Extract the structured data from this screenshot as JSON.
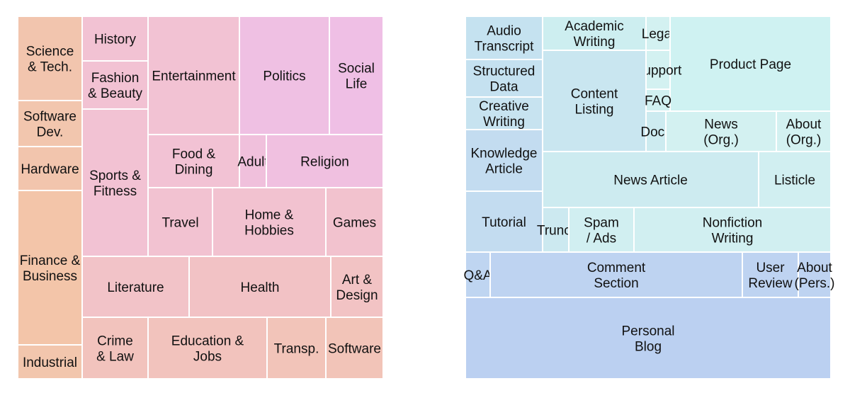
{
  "treemaps": [
    {
      "cells": [
        {
          "label": "Science\n& Tech.",
          "color": "#f2c5ae"
        },
        {
          "label": "Software\nDev.",
          "color": "#f2c6ae"
        },
        {
          "label": "Hardware",
          "color": "#f2c5ad"
        },
        {
          "label": "Finance &\nBusiness",
          "color": "#f3c5a9"
        },
        {
          "label": "Industrial",
          "color": "#f2c6ad"
        },
        {
          "label": "History",
          "color": "#f2c2d3"
        },
        {
          "label": "Fashion\n& Beauty",
          "color": "#f2c2d3"
        },
        {
          "label": "Sports &\nFitness",
          "color": "#f2c2d3"
        },
        {
          "label": "Entertainment",
          "color": "#f2c2d3"
        },
        {
          "label": "Politics",
          "color": "#efc0e3"
        },
        {
          "label": "Social\nLife",
          "color": "#efbfe5"
        },
        {
          "label": "Food &\nDining",
          "color": "#f2c2d4"
        },
        {
          "label": "Adult",
          "color": "#f0c0dc"
        },
        {
          "label": "Religion",
          "color": "#f0c0e0"
        },
        {
          "label": "Travel",
          "color": "#f2c2d1"
        },
        {
          "label": "Home &\nHobbies",
          "color": "#f2c2d0"
        },
        {
          "label": "Games",
          "color": "#f2c2ce"
        },
        {
          "label": "Literature",
          "color": "#f2c3c8"
        },
        {
          "label": "Health",
          "color": "#f2c2c5"
        },
        {
          "label": "Art &\nDesign",
          "color": "#f2c3c4"
        },
        {
          "label": "Crime\n& Law",
          "color": "#f2c3bd"
        },
        {
          "label": "Education &\nJobs",
          "color": "#f2c3bd"
        },
        {
          "label": "Transp.",
          "color": "#f2c4b9"
        },
        {
          "label": "Software",
          "color": "#f2c4b8"
        }
      ]
    },
    {
      "cells": [
        {
          "label": "Audio\nTranscript",
          "color": "#c5e2f0"
        },
        {
          "label": "Academic\nWriting",
          "color": "#cdeef0"
        },
        {
          "label": "Legal",
          "color": "#d3f1f1"
        },
        {
          "label": "Product Page",
          "color": "#cff2f2"
        },
        {
          "label": "Structured\nData",
          "color": "#c5e1f0"
        },
        {
          "label": "Support",
          "color": "#d3f1f1"
        },
        {
          "label": "Creative\nWriting",
          "color": "#c7e3f0"
        },
        {
          "label": "Content\nListing",
          "color": "#c9e6f0"
        },
        {
          "label": "FAQ",
          "color": "#d1f0f1"
        },
        {
          "label": "Docs",
          "color": "#cdebf0"
        },
        {
          "label": "News\n(Org.)",
          "color": "#d3f1f1"
        },
        {
          "label": "About\n(Org.)",
          "color": "#d3f1f1"
        },
        {
          "label": "Knowledge\nArticle",
          "color": "#c3dcf0"
        },
        {
          "label": "News Article",
          "color": "#cdebf0"
        },
        {
          "label": "Listicle",
          "color": "#d1eff1"
        },
        {
          "label": "Tutorial",
          "color": "#c3dcf0"
        },
        {
          "label": "Trunc.",
          "color": "#cce9f0"
        },
        {
          "label": "Spam\n/ Ads",
          "color": "#d1eff1"
        },
        {
          "label": "Nonfiction\nWriting",
          "color": "#d1eff1"
        },
        {
          "label": "Q&A",
          "color": "#bfd5f1"
        },
        {
          "label": "Comment\nSection",
          "color": "#bed3f1"
        },
        {
          "label": "User\nReview",
          "color": "#bed3f1"
        },
        {
          "label": "About\n(Pers.)",
          "color": "#bed3f1"
        },
        {
          "label": "Personal\nBlog",
          "color": "#bbd0f1"
        }
      ]
    }
  ]
}
